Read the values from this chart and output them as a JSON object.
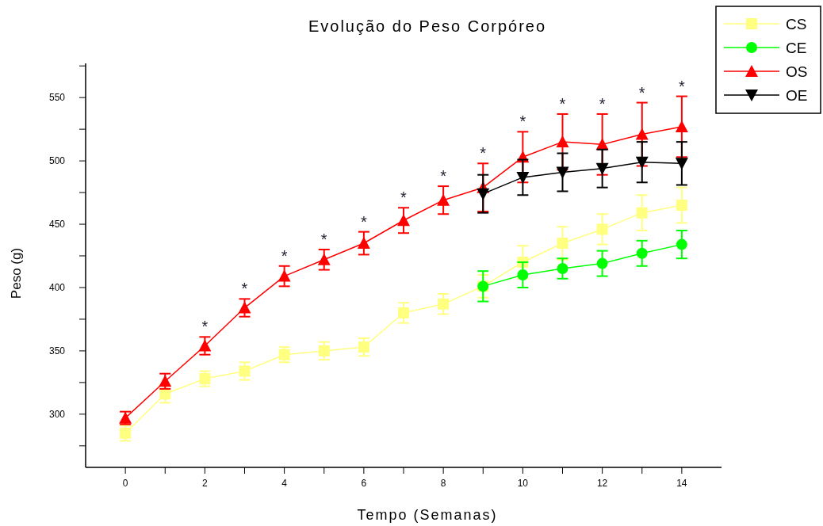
{
  "chart_data": {
    "type": "line",
    "title": "Evolução do Peso Corpóreo",
    "xlabel": "Tempo (Semanas)",
    "ylabel": "Peso (g)",
    "x": [
      0,
      1,
      2,
      3,
      4,
      5,
      6,
      7,
      8,
      9,
      10,
      11,
      12,
      13,
      14
    ],
    "xlim": [
      -1,
      15
    ],
    "xticks": [
      0,
      {
        "value": 1,
        "label": null
      },
      2,
      {
        "value": 3,
        "label": null
      },
      4,
      {
        "value": 5,
        "label": null
      },
      6,
      {
        "value": 7,
        "label": null
      },
      8,
      {
        "value": 9,
        "label": null
      },
      10,
      {
        "value": 11,
        "label": null
      },
      12,
      {
        "value": 13,
        "label": null
      },
      14
    ],
    "ylim": [
      258,
      577
    ],
    "yticks": [
      {
        "value": 275,
        "label": null
      },
      300,
      {
        "value": 325,
        "label": null
      },
      350,
      {
        "value": 375,
        "label": null
      },
      400,
      {
        "value": 425,
        "label": null
      },
      450,
      {
        "value": 475,
        "label": null
      },
      500,
      {
        "value": 525,
        "label": null
      },
      550,
      {
        "value": 575,
        "label": null
      }
    ],
    "grid": false,
    "legend": "top right",
    "line_style": "solid",
    "series": [
      {
        "name": "CS",
        "color": "#ffff80",
        "marker": "square",
        "values": [
          285,
          316,
          328,
          334,
          347,
          350,
          353,
          380,
          387,
          401,
          420,
          435,
          446,
          459,
          465
        ],
        "errors": [
          6,
          7,
          6,
          7,
          6,
          7,
          7,
          8,
          8,
          9,
          13,
          13,
          12,
          14,
          14
        ]
      },
      {
        "name": "CE",
        "color": "#00ff00",
        "marker": "circle",
        "values": [
          null,
          null,
          null,
          null,
          null,
          null,
          null,
          null,
          null,
          401,
          410,
          415,
          419,
          427,
          434
        ],
        "errors": [
          null,
          null,
          null,
          null,
          null,
          null,
          null,
          null,
          null,
          12,
          10,
          8,
          10,
          10,
          11
        ]
      },
      {
        "name": "OS",
        "color": "#ff0000",
        "marker": "triangle",
        "values": [
          297,
          326,
          354,
          384,
          409,
          422,
          435,
          453,
          469,
          479,
          503,
          515,
          513,
          521,
          527
        ],
        "errors": [
          5,
          6,
          7,
          7,
          8,
          8,
          9,
          10,
          11,
          19,
          20,
          22,
          24,
          25,
          24
        ]
      },
      {
        "name": "OE",
        "color": "#000000",
        "marker": "triangle-down",
        "values": [
          null,
          null,
          null,
          null,
          null,
          null,
          null,
          null,
          null,
          474,
          487,
          491,
          494,
          499,
          498
        ],
        "errors": [
          null,
          null,
          null,
          null,
          null,
          null,
          null,
          null,
          null,
          15,
          14,
          15,
          15,
          16,
          17
        ]
      }
    ],
    "annotations": [
      {
        "text": "*",
        "x": 2,
        "y": 354
      },
      {
        "text": "*",
        "x": 3,
        "y": 384
      },
      {
        "text": "*",
        "x": 4,
        "y": 409
      },
      {
        "text": "*",
        "x": 5,
        "y": 422
      },
      {
        "text": "*",
        "x": 6,
        "y": 435
      },
      {
        "text": "*",
        "x": 7,
        "y": 453
      },
      {
        "text": "*",
        "x": 8,
        "y": 469
      },
      {
        "text": "*",
        "x": 9,
        "y": 479
      },
      {
        "text": "*",
        "x": 10,
        "y": 503
      },
      {
        "text": "*",
        "x": 11,
        "y": 515
      },
      {
        "text": "*",
        "x": 12,
        "y": 513
      },
      {
        "text": "*",
        "x": 13,
        "y": 521
      },
      {
        "text": "*",
        "x": 14,
        "y": 527
      }
    ]
  }
}
